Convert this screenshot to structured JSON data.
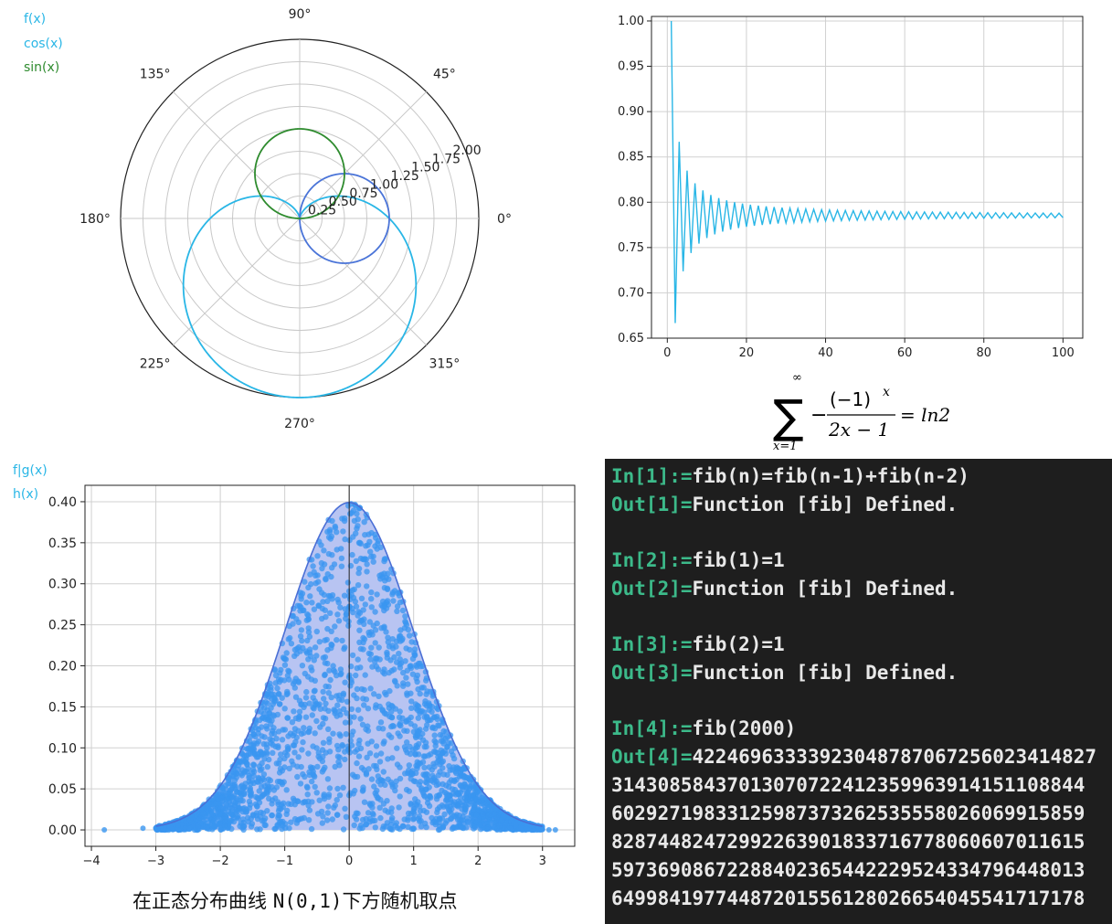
{
  "chart_data": [
    {
      "type": "line",
      "projection": "polar",
      "legend": [
        "f(x)",
        "cos(x)",
        "sin(x)"
      ],
      "legend_placement": "top-left",
      "angle_ticks": [
        "0°",
        "45°",
        "90°",
        "135°",
        "180°",
        "225°",
        "270°",
        "315°"
      ],
      "radial_ticks": [
        "0.25",
        "0.50",
        "0.75",
        "1.00",
        "1.25",
        "1.50",
        "1.75",
        "2.00"
      ],
      "rlim": [
        0,
        2
      ],
      "grid": true,
      "series": [
        {
          "name": "f(x)",
          "formula": "1 - sin(x)",
          "color": "#29b6e6"
        },
        {
          "name": "cos(x)",
          "formula": "cos(x)",
          "color": "#4a74d8"
        },
        {
          "name": "sin(x)",
          "formula": "sin(x)",
          "color": "#2e8b2e"
        }
      ]
    },
    {
      "type": "line",
      "x_ticks": [
        "0",
        "20",
        "40",
        "60",
        "80",
        "100"
      ],
      "y_ticks": [
        "0.65",
        "0.70",
        "0.75",
        "0.80",
        "0.85",
        "0.90",
        "0.95",
        "1.00"
      ],
      "xlim": [
        -4,
        105
      ],
      "ylim": [
        0.65,
        1.005
      ],
      "grid": true,
      "color": "#29b6e6",
      "series": [
        {
          "formula": "partial sums of -(-1)^x/(2x-1), x = 1..100",
          "x_start": 1,
          "x_end": 100
        }
      ],
      "formula": {
        "sum_top": "∞",
        "sum_bottom": "x=1",
        "numerator": "(−1)",
        "exponent": "x",
        "denominator": "2x − 1",
        "rhs": "= ln2"
      }
    },
    {
      "type": "scatter",
      "legend": [
        "f|g(x)",
        "h(x)"
      ],
      "legend_placement": "top-left",
      "x_ticks": [
        "−4",
        "−3",
        "−2",
        "−1",
        "0",
        "1",
        "2",
        "3"
      ],
      "y_ticks": [
        "0.00",
        "0.05",
        "0.10",
        "0.15",
        "0.20",
        "0.25",
        "0.30",
        "0.35",
        "0.40"
      ],
      "xlim": [
        -4.1,
        3.5
      ],
      "ylim": [
        -0.02,
        0.42
      ],
      "grid": true,
      "curve": {
        "formula": "N(0,1) density",
        "range": [
          -3,
          3
        ],
        "color": "#4a6fd6",
        "fill": "#b8c4f2"
      },
      "points_color": "#3a96f0",
      "outlier_points": [
        {
          "x": -3.8,
          "y": 0.0
        },
        {
          "x": -3.2,
          "y": 0.002
        },
        {
          "x": 3.1,
          "y": 0.0
        },
        {
          "x": 3.2,
          "y": 0.0
        }
      ],
      "caption": {
        "prefix": "在正态分布曲线 ",
        "mono": "N(0,1)",
        "suffix": "下方随机取点"
      }
    }
  ],
  "console": {
    "lines": [
      {
        "prompt": "In[1]:=",
        "code": "fib(n)=fib(n-1)+fib(n-2)"
      },
      {
        "prompt": "Out[1]=",
        "code": "Function [fib] Defined."
      },
      {
        "prompt": "In[2]:=",
        "code": "fib(1)=1"
      },
      {
        "prompt": "Out[2]=",
        "code": "Function [fib] Defined."
      },
      {
        "prompt": "In[3]:=",
        "code": "fib(2)=1"
      },
      {
        "prompt": "Out[3]=",
        "code": "Function [fib] Defined."
      },
      {
        "prompt": "In[4]:=",
        "code": "fib(2000)"
      },
      {
        "prompt": "Out[4]=",
        "code": "42246963333923048787067256023414827"
      },
      {
        "prompt": "",
        "code": "31430858437013070722412359963914151108844"
      },
      {
        "prompt": "",
        "code": "60292719833125987373262535558026069915859"
      },
      {
        "prompt": "",
        "code": "82874482472992263901833716778060607011615"
      },
      {
        "prompt": "",
        "code": "59736908672288402365442229524334796448013"
      },
      {
        "prompt": "",
        "code": "64998419774487201556128026654045541717178"
      }
    ]
  }
}
